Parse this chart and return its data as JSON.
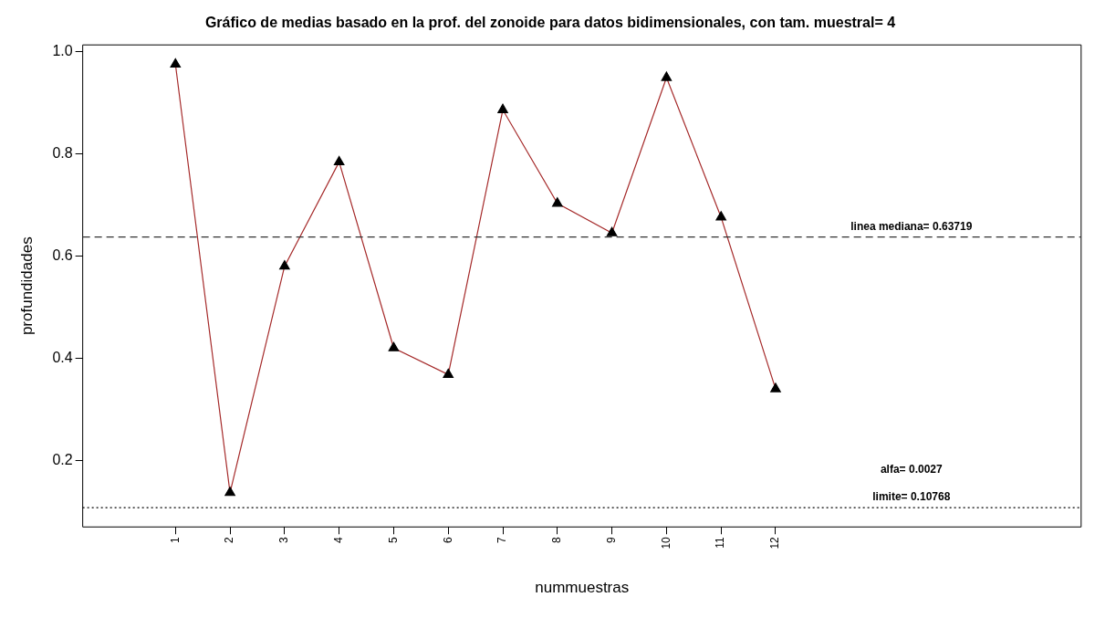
{
  "chart_data": {
    "type": "line",
    "title": "Gráfico de medias basado en la prof. del zonoide para datos bidimensionales, con tam. muestral= 4",
    "xlabel": "nummuestras",
    "ylabel": "profundidades",
    "x": [
      1,
      2,
      3,
      4,
      5,
      6,
      7,
      8,
      9,
      10,
      11,
      12
    ],
    "series": [
      {
        "color": "#a52a2a",
        "values": [
          0.975,
          0.137,
          0.58,
          0.784,
          0.42,
          0.368,
          0.886,
          0.703,
          0.645,
          0.949,
          0.676,
          0.34
        ]
      }
    ],
    "marker": "triangle",
    "grid": false,
    "legend": false,
    "xlim": [
      -0.7,
      17.6
    ],
    "xticks": [
      1,
      2,
      3,
      4,
      5,
      6,
      7,
      8,
      9,
      10,
      11,
      12
    ],
    "ylim": [
      0.07,
      1.013
    ],
    "yticks": [
      0.2,
      0.4,
      0.6,
      0.8,
      {
        "value": 1,
        "label": "1.0"
      }
    ],
    "ref_lines": [
      {
        "axis": "y",
        "value": 0.63719,
        "label": "linea mediana= 0.63719",
        "color": "#333333",
        "line_style": "dashed"
      },
      {
        "axis": "y",
        "value": 0.10768,
        "label": "limite= 0.10768",
        "color": "#000000",
        "line_style": "dotted"
      }
    ],
    "annotations": [
      "alfa= 0.0027"
    ]
  }
}
